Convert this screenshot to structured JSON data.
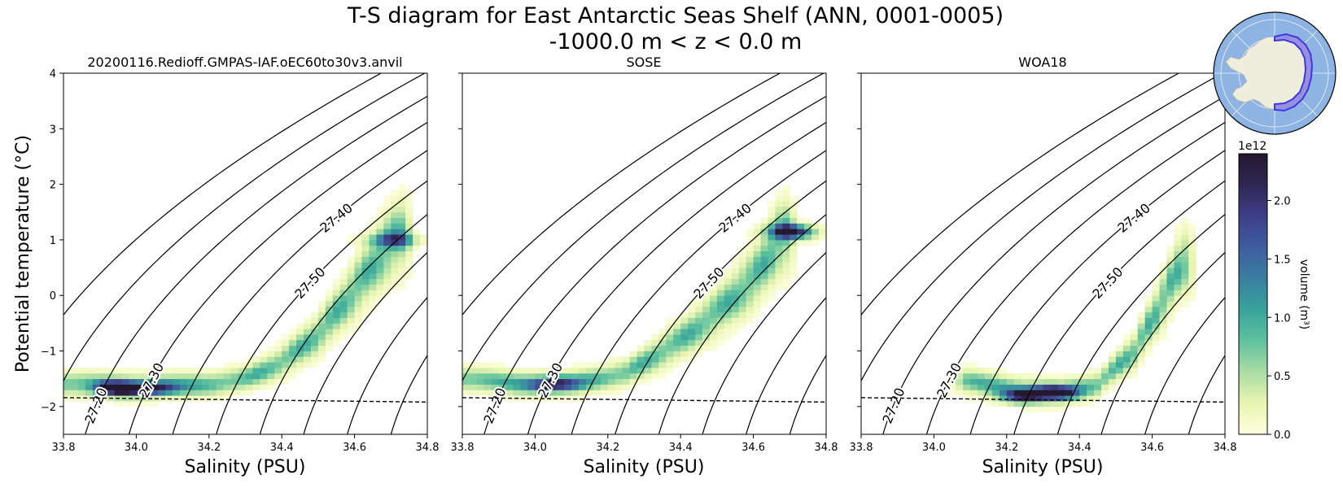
{
  "figure": {
    "title_line1": "T-S diagram for East Antarctic Seas Shelf (ANN, 0001-0005)",
    "title_line2": "-1000.0 m < z < 0.0 m"
  },
  "chart_data": [
    {
      "type": "heatmap",
      "title": "20200116.Redioff.GMPAS-IAF.oEC60to30v3.anvil",
      "xlabel": "Salinity (PSU)",
      "ylabel": "Potential temperature (°C)",
      "xlim": [
        33.8,
        34.8
      ],
      "ylim": [
        -2.5,
        4
      ],
      "xticks": [
        "33.8",
        "34.0",
        "34.2",
        "34.4",
        "34.6",
        "34.8"
      ],
      "yticks": [
        "−2",
        "−1",
        "0",
        "1",
        "2",
        "3",
        "4"
      ],
      "freezing_line": [
        [
          33.8,
          -1.84
        ],
        [
          34.8,
          -1.92
        ]
      ],
      "density_contours": [
        "27.00",
        "27.10",
        "27.20",
        "27.30",
        "27.40",
        "27.50",
        "27.60",
        "27.70",
        "27.80",
        "27.90",
        "28.00"
      ],
      "ridge": [
        [
          33.8,
          -1.58
        ],
        [
          33.95,
          -1.62
        ],
        [
          34.1,
          -1.62
        ],
        [
          34.2,
          -1.6
        ],
        [
          34.3,
          -1.5
        ],
        [
          34.4,
          -1.2
        ],
        [
          34.5,
          -0.7
        ],
        [
          34.6,
          0.1
        ],
        [
          34.68,
          0.8
        ],
        [
          34.72,
          1.1
        ]
      ],
      "hotspots": [
        [
          33.95,
          -1.67,
          2.2
        ],
        [
          34.05,
          -1.67,
          2.0
        ],
        [
          34.7,
          1.0,
          1.4
        ]
      ]
    },
    {
      "type": "heatmap",
      "title": "SOSE",
      "xlabel": "Salinity (PSU)",
      "xlim": [
        33.8,
        34.8
      ],
      "ylim": [
        -2.5,
        4
      ],
      "xticks": [
        "33.8",
        "34.0",
        "34.2",
        "34.4",
        "34.6",
        "34.8"
      ],
      "yticks": [
        "−2",
        "−1",
        "0",
        "1",
        "2",
        "3",
        "4"
      ],
      "freezing_line": [
        [
          33.8,
          -1.84
        ],
        [
          34.8,
          -1.92
        ]
      ],
      "density_contours": [
        "27.00",
        "27.10",
        "27.20",
        "27.30",
        "27.40",
        "27.50",
        "27.60",
        "27.70",
        "27.80",
        "27.90",
        "28.00"
      ],
      "ridge": [
        [
          33.8,
          -1.5
        ],
        [
          33.95,
          -1.58
        ],
        [
          34.1,
          -1.58
        ],
        [
          34.25,
          -1.4
        ],
        [
          34.4,
          -0.8
        ],
        [
          34.5,
          -0.3
        ],
        [
          34.6,
          0.3
        ],
        [
          34.68,
          1.1
        ]
      ],
      "hotspots": [
        [
          34.05,
          -1.6,
          2.0
        ],
        [
          34.7,
          1.15,
          2.2
        ]
      ]
    },
    {
      "type": "heatmap",
      "title": "WOA18",
      "xlabel": "Salinity (PSU)",
      "xlim": [
        33.8,
        34.8
      ],
      "ylim": [
        -2.5,
        4
      ],
      "xticks": [
        "33.8",
        "34.0",
        "34.2",
        "34.4",
        "34.6",
        "34.8"
      ],
      "yticks": [
        "−2",
        "−1",
        "0",
        "1",
        "2",
        "3",
        "4"
      ],
      "freezing_line": [
        [
          33.8,
          -1.84
        ],
        [
          34.8,
          -1.92
        ]
      ],
      "density_contours": [
        "27.00",
        "27.10",
        "27.20",
        "27.30",
        "27.40",
        "27.50",
        "27.60",
        "27.70",
        "27.80",
        "27.90",
        "28.00"
      ],
      "ridge": [
        [
          34.1,
          -1.55
        ],
        [
          34.25,
          -1.7
        ],
        [
          34.35,
          -1.75
        ],
        [
          34.45,
          -1.6
        ],
        [
          34.55,
          -1.0
        ],
        [
          34.62,
          -0.2
        ],
        [
          34.68,
          0.6
        ]
      ],
      "hotspots": [
        [
          34.32,
          -1.75,
          2.4
        ],
        [
          34.25,
          -1.8,
          1.8
        ]
      ]
    }
  ],
  "colorbar": {
    "label": "volume (m³)",
    "scale_label": "1e12",
    "min": 0.0,
    "max": 2.4,
    "ticks": [
      "0.0",
      "0.5",
      "1.0",
      "1.5",
      "2.0"
    ],
    "tick_values": [
      0.0,
      0.5,
      1.0,
      1.5,
      2.0
    ],
    "colors": [
      "#ffffe0",
      "#e8f5b0",
      "#a9dcA4",
      "#5fc29e",
      "#38a39b",
      "#3a7fa0",
      "#3f5d9f",
      "#3d3f88",
      "#2f2653",
      "#24182e"
    ]
  },
  "inset_map": {
    "ocean_color": "#8eb4e3",
    "land_color": "#efeedd",
    "region_color": "#7b6fe0"
  }
}
